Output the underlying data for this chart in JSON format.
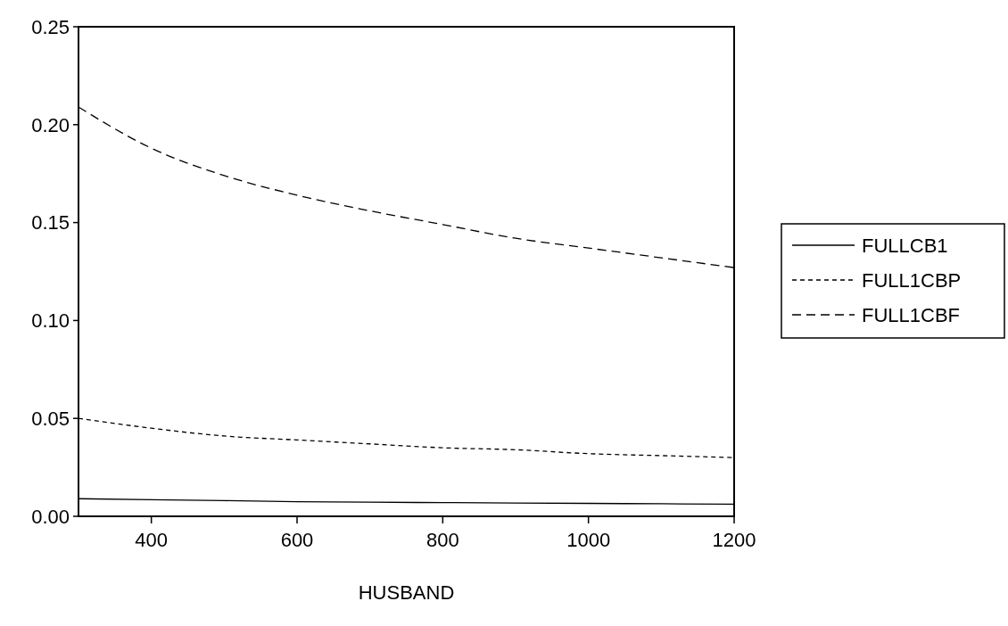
{
  "chart_data": {
    "type": "line",
    "xlabel": "HUSBAND",
    "x": [
      300,
      400,
      500,
      600,
      700,
      800,
      900,
      1000,
      1100,
      1200
    ],
    "series": [
      {
        "name": "FULLCB1",
        "color": "#000000",
        "line_style": "solid",
        "values": [
          0.009,
          0.0085,
          0.008,
          0.0075,
          0.0072,
          0.007,
          0.0068,
          0.0066,
          0.0064,
          0.0062
        ]
      },
      {
        "name": "FULL1CBP",
        "color": "#000000",
        "line_style": "dotted",
        "values": [
          0.05,
          0.045,
          0.041,
          0.039,
          0.037,
          0.035,
          0.034,
          0.032,
          0.031,
          0.03
        ]
      },
      {
        "name": "FULL1CBF",
        "color": "#000000",
        "line_style": "dashed",
        "values": [
          0.209,
          0.188,
          0.174,
          0.164,
          0.156,
          0.149,
          0.142,
          0.137,
          0.132,
          0.127
        ]
      }
    ],
    "xlim": [
      300,
      1200
    ],
    "xticks": [
      400,
      600,
      800,
      1000,
      1200
    ],
    "ylim": [
      0,
      0.25
    ],
    "yticks": [
      {
        "value": 0,
        "label": "0.00"
      },
      {
        "value": 0.05,
        "label": "0.05"
      },
      {
        "value": 0.1,
        "label": "0.10"
      },
      {
        "value": 0.15,
        "label": "0.15"
      },
      {
        "value": 0.2,
        "label": "0.20"
      },
      {
        "value": 0.25,
        "label": "0.25"
      }
    ],
    "grid": false,
    "legend": "right",
    "marker": "none"
  }
}
